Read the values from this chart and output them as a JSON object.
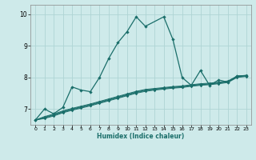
{
  "xlabel": "Humidex (Indice chaleur)",
  "background_color": "#ceeaea",
  "grid_color": "#aed4d4",
  "line_color": "#1a6e6a",
  "xlim": [
    -0.5,
    23.5
  ],
  "ylim": [
    6.5,
    10.3
  ],
  "yticks": [
    7,
    8,
    9,
    10
  ],
  "xticks": [
    0,
    1,
    2,
    3,
    4,
    5,
    6,
    7,
    8,
    9,
    10,
    11,
    12,
    13,
    14,
    15,
    16,
    17,
    18,
    19,
    20,
    21,
    22,
    23
  ],
  "series1_x": [
    0,
    1,
    2,
    3,
    4,
    5,
    6,
    7,
    8,
    9,
    10,
    11,
    12,
    14,
    15,
    16,
    17,
    18,
    19,
    20,
    21,
    22,
    23
  ],
  "series1_y": [
    6.65,
    7.0,
    6.85,
    7.05,
    7.7,
    7.6,
    7.55,
    8.0,
    8.6,
    9.1,
    9.45,
    9.92,
    9.62,
    9.92,
    9.2,
    8.0,
    7.75,
    8.22,
    7.75,
    7.92,
    7.85,
    8.05,
    8.05
  ],
  "series2_x": [
    0,
    1,
    2,
    3,
    4,
    5,
    6,
    7,
    8,
    9,
    10,
    11,
    12,
    13,
    14,
    15,
    16,
    17,
    18,
    19,
    20,
    21,
    22,
    23
  ],
  "series2_y": [
    6.65,
    6.72,
    6.8,
    6.9,
    6.98,
    7.05,
    7.12,
    7.2,
    7.28,
    7.36,
    7.44,
    7.52,
    7.58,
    7.62,
    7.65,
    7.68,
    7.7,
    7.74,
    7.77,
    7.79,
    7.82,
    7.86,
    8.02,
    8.05
  ],
  "series3_x": [
    0,
    1,
    2,
    3,
    4,
    5,
    6,
    7,
    8,
    9,
    10,
    11,
    12,
    13,
    14,
    15,
    16,
    17,
    18,
    19,
    20,
    21,
    22,
    23
  ],
  "series3_y": [
    6.65,
    6.74,
    6.82,
    6.92,
    7.0,
    7.07,
    7.14,
    7.22,
    7.3,
    7.38,
    7.46,
    7.54,
    7.6,
    7.63,
    7.66,
    7.69,
    7.71,
    7.75,
    7.78,
    7.8,
    7.83,
    7.87,
    8.03,
    8.06
  ],
  "series4_x": [
    0,
    1,
    2,
    3,
    4,
    5,
    6,
    7,
    8,
    9,
    10,
    11,
    12,
    13,
    14,
    15,
    16,
    17,
    18,
    19,
    20,
    21,
    22,
    23
  ],
  "series4_y": [
    6.65,
    6.76,
    6.84,
    6.94,
    7.02,
    7.09,
    7.16,
    7.24,
    7.32,
    7.4,
    7.48,
    7.56,
    7.62,
    7.65,
    7.68,
    7.71,
    7.73,
    7.77,
    7.8,
    7.82,
    7.85,
    7.89,
    8.04,
    8.07
  ],
  "series5_x": [
    0,
    1,
    2,
    3,
    4,
    5,
    6,
    7,
    8,
    9,
    10,
    11,
    12,
    13,
    14,
    15,
    16,
    17,
    18,
    19,
    20,
    21,
    22,
    23
  ],
  "series5_y": [
    6.65,
    6.7,
    6.78,
    6.88,
    6.96,
    7.03,
    7.1,
    7.18,
    7.26,
    7.34,
    7.42,
    7.5,
    7.56,
    7.6,
    7.63,
    7.66,
    7.68,
    7.72,
    7.75,
    7.77,
    7.8,
    7.84,
    8.0,
    8.03
  ]
}
